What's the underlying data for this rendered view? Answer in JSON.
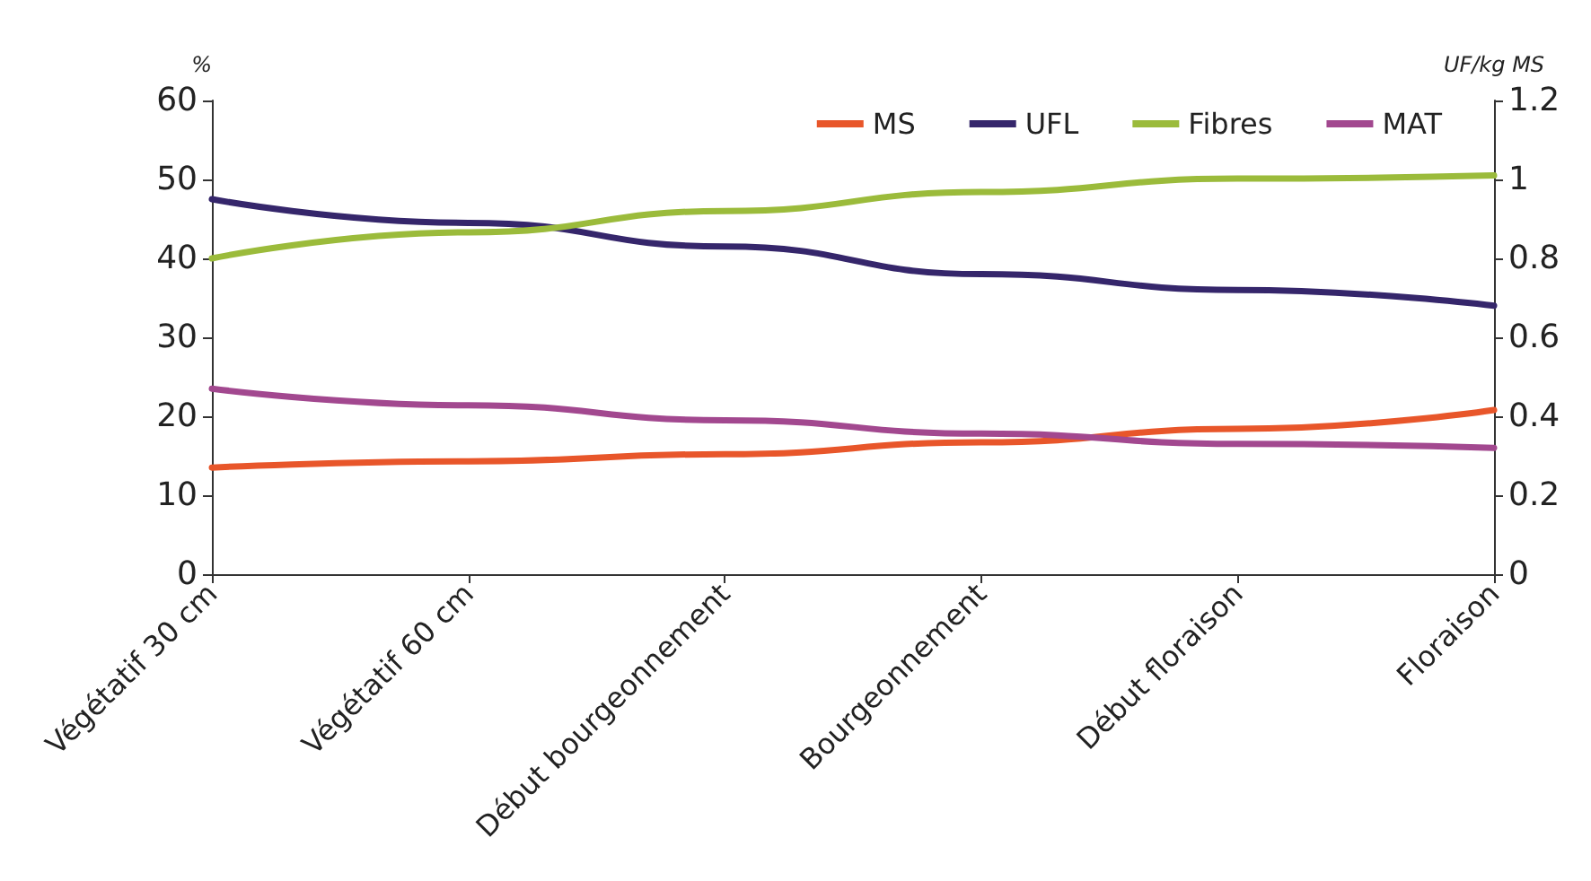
{
  "chart_data": {
    "type": "line",
    "ylabel": "%",
    "y2label": "UF/kg MS",
    "categories": [
      "Végétatif 30 cm",
      "Végétatif 60 cm",
      "Début bourgeonnement",
      "Bourgeonnement",
      "Début floraison",
      "Floraison"
    ],
    "series": [
      {
        "name": "MS",
        "color": "#e8562a",
        "values": [
          13.5,
          14.3,
          15.2,
          16.7,
          18.4,
          20.8
        ]
      },
      {
        "name": "UFL",
        "color": "#35266b",
        "axis": "y2",
        "values": [
          0.95,
          0.89,
          0.83,
          0.76,
          0.72,
          0.68
        ]
      },
      {
        "name": "Fibres",
        "color": "#9bbb3b",
        "values": [
          40,
          43.3,
          46,
          48.4,
          50.1,
          50.5
        ]
      },
      {
        "name": "MAT",
        "color": "#a2488f",
        "values": [
          23.5,
          21.4,
          19.5,
          17.8,
          16.5,
          16
        ]
      }
    ],
    "ylim": [
      0,
      60
    ],
    "yticks": [
      0,
      10,
      20,
      30,
      40,
      50,
      60
    ],
    "y2lim": [
      0,
      1.2
    ],
    "y2ticks": [
      0,
      0.2,
      0.4,
      0.6,
      0.8,
      1,
      1.2
    ],
    "grid": false,
    "legend": "top right",
    "marker": "none",
    "line_style": "solid"
  }
}
